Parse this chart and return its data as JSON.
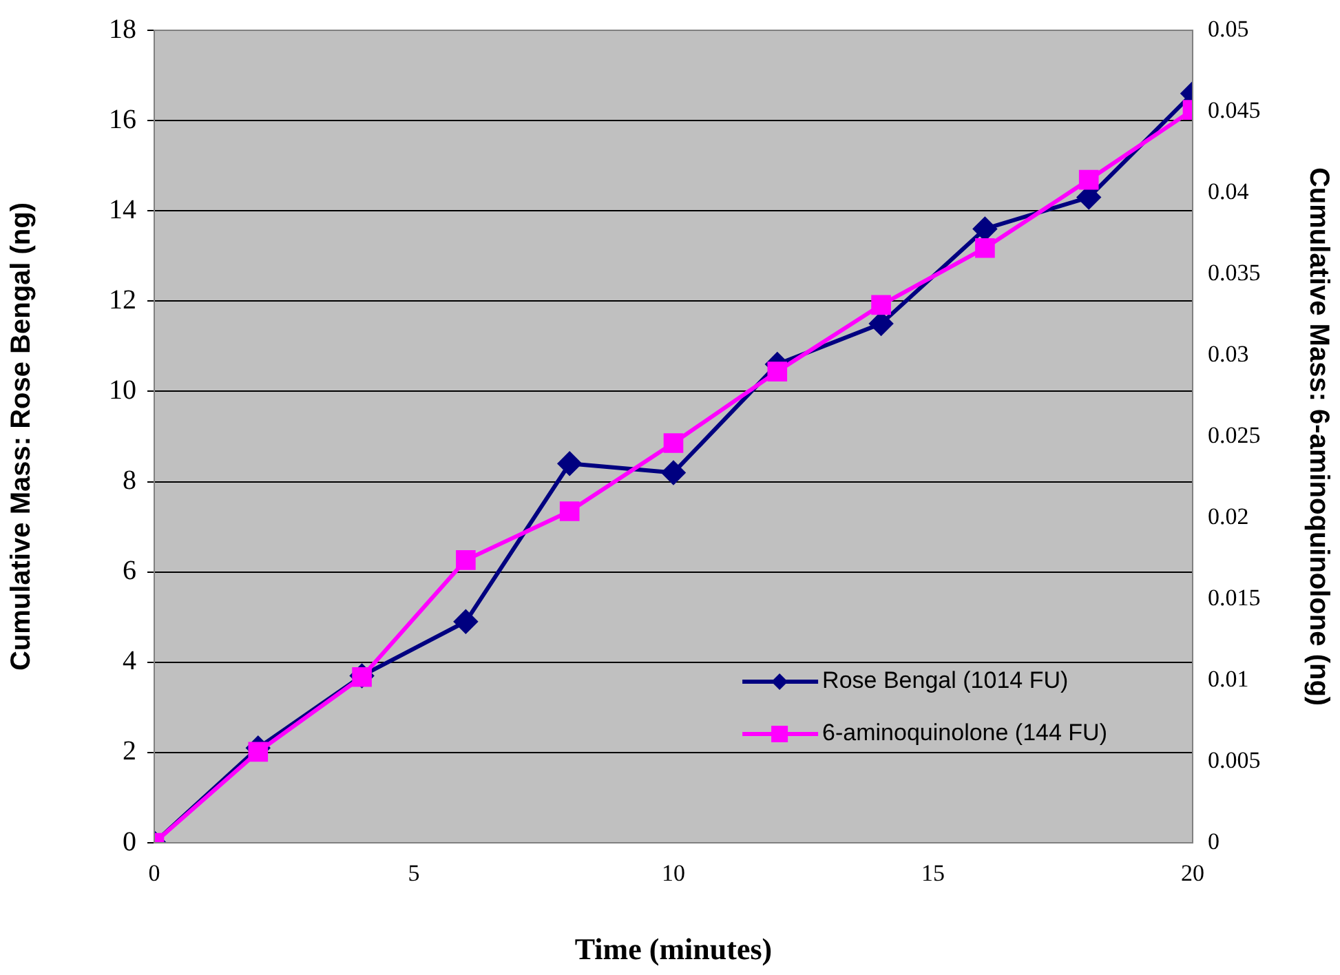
{
  "chart_data": {
    "type": "line",
    "xlabel": "Time (minutes)",
    "ylabel": "Cumulative Mass: Rose Bengal (ng)",
    "y2label": "Cumulative Mass: 6-aminoquinolone (ng)",
    "x": [
      0,
      2,
      4,
      6,
      8,
      10,
      12,
      14,
      16,
      18,
      20
    ],
    "series": [
      {
        "name": "Rose Bengal (1014 FU)",
        "color": "#000080",
        "marker": "diamond",
        "values": [
          0,
          2.1,
          3.7,
          4.9,
          8.4,
          8.2,
          10.6,
          11.5,
          13.6,
          14.3,
          16.6
        ]
      },
      {
        "name": "6-aminoquinolone (144 FU)",
        "color": "#ff00ff",
        "marker": "square",
        "axis": "y2",
        "values": [
          0,
          0.0056,
          0.0102,
          0.0174,
          0.0204,
          0.0246,
          0.029,
          0.0331,
          0.0366,
          0.0408,
          0.0451
        ]
      }
    ],
    "xlim": [
      0,
      20
    ],
    "xticks": [
      0,
      5,
      10,
      15,
      20
    ],
    "ylim": [
      0,
      18
    ],
    "yticks": [
      0,
      2,
      4,
      6,
      8,
      10,
      12,
      14,
      16,
      18
    ],
    "y2lim": [
      0,
      0.05
    ],
    "y2ticks": [
      0,
      0.005,
      0.01,
      0.015,
      0.02,
      0.025,
      0.03,
      0.035,
      0.04,
      0.045,
      0.05
    ],
    "grid": "y",
    "legend": "bottom right",
    "line_style": "solid"
  }
}
